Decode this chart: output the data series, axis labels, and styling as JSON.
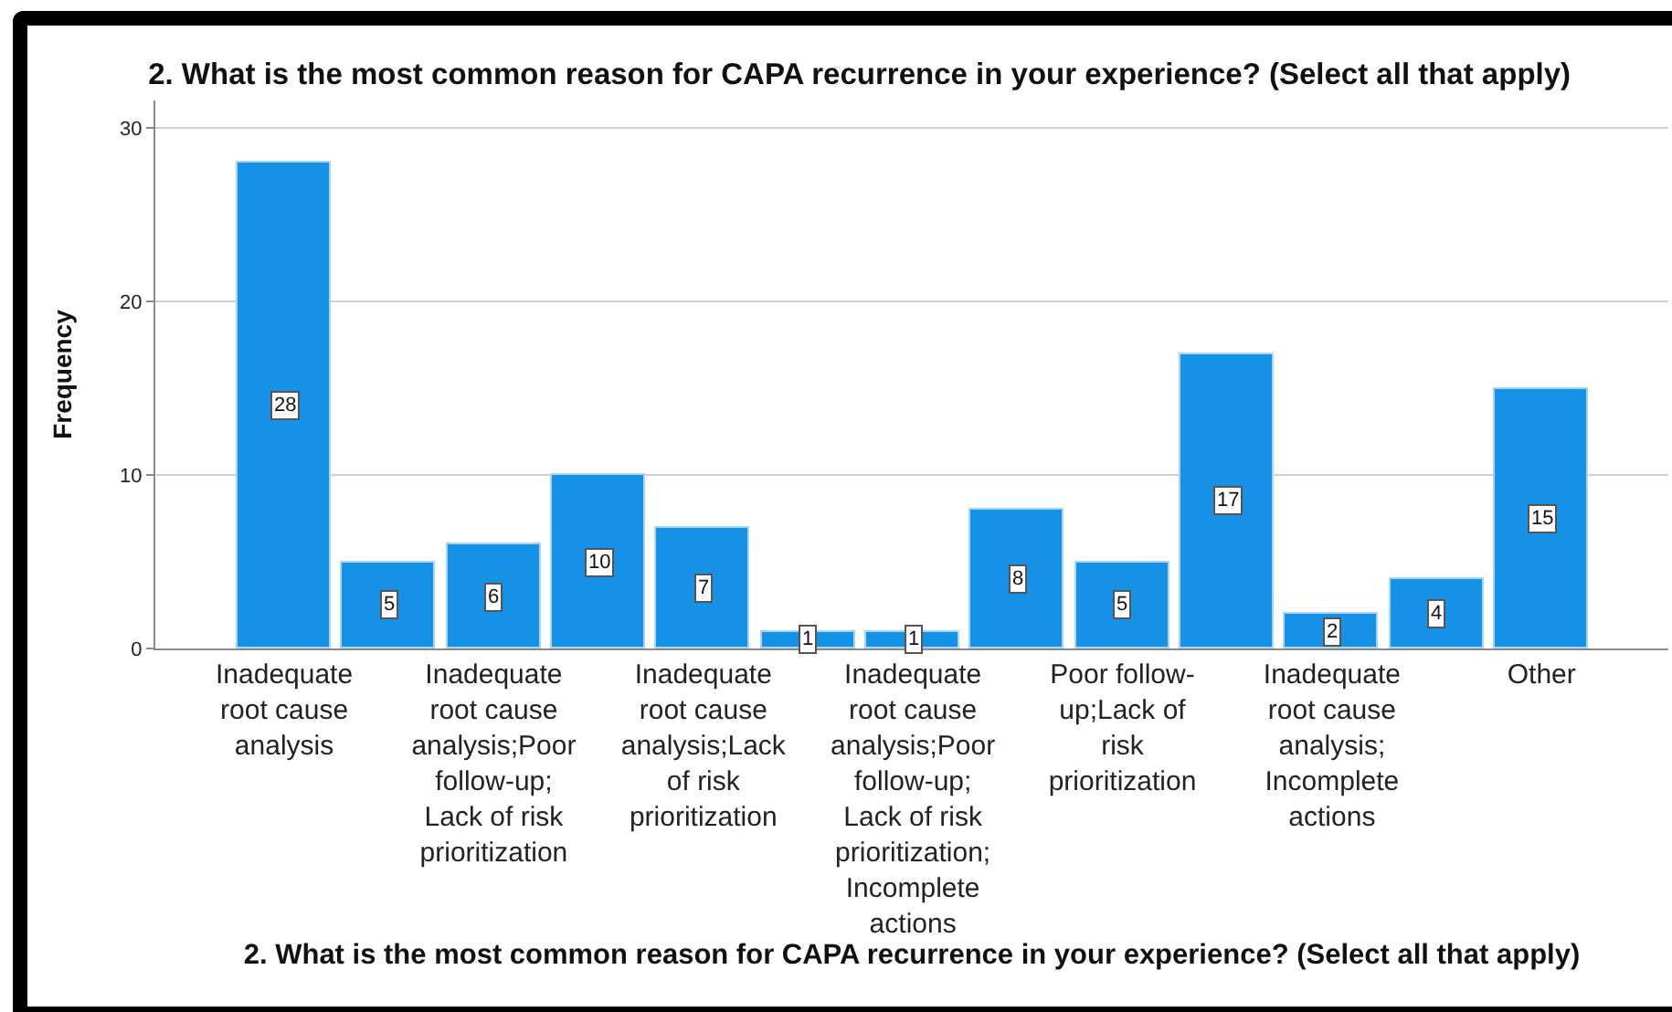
{
  "chart_data": {
    "type": "bar",
    "title": "2. What is the most common reason for CAPA recurrence in your experience? (Select all that apply)",
    "xlabel": "2. What is the most common reason for CAPA recurrence in your experience? (Select all that apply)",
    "ylabel": "Frequency",
    "categories": [
      "Inadequate root cause analysis",
      null,
      "Inadequate root cause analysis;Poor follow-up; Lack of risk prioritization",
      null,
      "Inadequate root cause analysis;Lack of risk prioritization",
      null,
      "Inadequate root cause analysis;Poor follow-up; Lack of risk prioritization; Incomplete actions",
      null,
      "Poor follow-up;Lack of risk prioritization",
      null,
      "Inadequate root cause analysis; Incomplete actions",
      null,
      "Other"
    ],
    "values": [
      28,
      5,
      6,
      10,
      7,
      1,
      1,
      8,
      5,
      17,
      2,
      4,
      15
    ],
    "color": "#1591e6",
    "ylim": [
      0,
      31.6
    ],
    "yticks": [
      0,
      10,
      20,
      30
    ],
    "grid": "y",
    "data_labels": true
  }
}
